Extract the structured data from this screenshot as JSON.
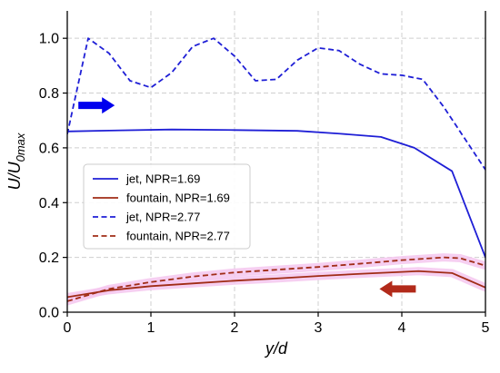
{
  "chart_data": {
    "type": "line",
    "xlabel": "y/d",
    "ylabel": {
      "main": "U/U",
      "sub": "0max"
    },
    "xlim": [
      0,
      5
    ],
    "ylim": [
      0.0,
      1.1
    ],
    "xticks": [
      "0",
      "1",
      "2",
      "3",
      "4",
      "5"
    ],
    "yticks": [
      "0.0",
      "0.2",
      "0.4",
      "0.6",
      "0.8",
      "1.0"
    ],
    "grid": true,
    "legend_position": "center-left",
    "series": [
      {
        "name": "jet, NPR=1.69",
        "color": "#1f1fd6",
        "dash": "solid",
        "x": [
          0,
          0.5,
          1.25,
          2.0,
          2.75,
          3.25,
          3.75,
          4.15,
          4.6,
          5.0
        ],
        "y": [
          0.66,
          0.663,
          0.667,
          0.665,
          0.662,
          0.652,
          0.64,
          0.6,
          0.515,
          0.2
        ]
      },
      {
        "name": "fountain, NPR=1.69",
        "color": "#a02c16",
        "dash": "solid",
        "x": [
          0,
          0.5,
          1.0,
          1.5,
          2.0,
          2.5,
          3.0,
          3.5,
          4.0,
          4.2,
          4.6,
          5.0
        ],
        "y": [
          0.055,
          0.08,
          0.095,
          0.105,
          0.115,
          0.123,
          0.132,
          0.14,
          0.147,
          0.15,
          0.143,
          0.09
        ]
      },
      {
        "name": "jet, NPR=2.77",
        "color": "#1f1fd6",
        "dash": "dashed",
        "x": [
          0,
          0.25,
          0.5,
          0.75,
          1.0,
          1.25,
          1.5,
          1.75,
          2.0,
          2.25,
          2.5,
          2.75,
          3.0,
          3.25,
          3.5,
          3.75,
          4.0,
          4.25,
          4.5,
          5.0
        ],
        "y": [
          0.65,
          1.0,
          0.945,
          0.845,
          0.82,
          0.875,
          0.97,
          1.0,
          0.935,
          0.845,
          0.85,
          0.92,
          0.965,
          0.955,
          0.905,
          0.87,
          0.865,
          0.85,
          0.75,
          0.52
        ]
      },
      {
        "name": "fountain, NPR=2.77",
        "color": "#a02c16",
        "dash": "dashed",
        "x": [
          0,
          0.5,
          1.0,
          1.5,
          2.0,
          2.5,
          3.0,
          3.5,
          4.0,
          4.5,
          4.7,
          5.0
        ],
        "y": [
          0.04,
          0.085,
          0.11,
          0.13,
          0.145,
          0.155,
          0.165,
          0.177,
          0.19,
          0.2,
          0.197,
          0.17
        ]
      }
    ],
    "annotations": [
      {
        "type": "arrow",
        "direction": "right",
        "color": "#0000ee",
        "x": 0.35,
        "y": 0.755
      },
      {
        "type": "arrow",
        "direction": "left",
        "color": "#b22a1a",
        "x": 3.95,
        "y": 0.085
      }
    ],
    "highlight_color": "#f5c7ef"
  }
}
